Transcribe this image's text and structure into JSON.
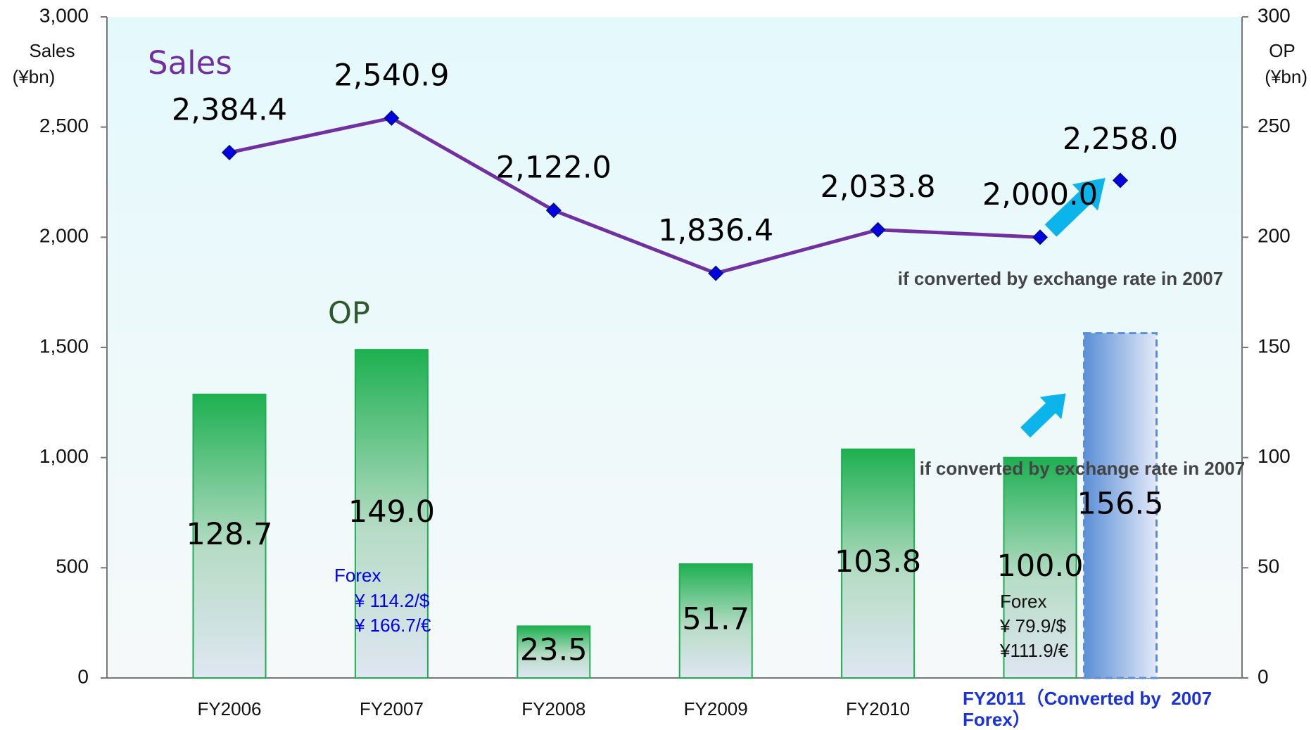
{
  "chart_data": {
    "type": "bar-line",
    "categories": [
      "FY2006",
      "FY2007",
      "FY2008",
      "FY2009",
      "FY2010",
      "FY2011（Converted by  2007 Forex）"
    ],
    "series": [
      {
        "name": "Sales",
        "color": "#7030a0",
        "marker_color": "#0000e0",
        "axis": "y",
        "type": "line",
        "values": [
          2384.4,
          2540.9,
          2122.0,
          1836.4,
          2033.8,
          2000.0
        ],
        "value_labels": [
          "2,384.4",
          "2,540.9",
          "2,122.0",
          "1,836.4",
          "2,033.8",
          "2,000.0"
        ]
      },
      {
        "name": "OP",
        "color": "#1db050",
        "name_color": "#2d5a2d",
        "axis": "y2",
        "type": "bar",
        "values": [
          128.7,
          149.0,
          23.5,
          51.7,
          103.8,
          100.0
        ],
        "value_labels": [
          "128.7",
          "149.0",
          "23.5",
          "51.7",
          "103.8",
          "100.0"
        ]
      }
    ],
    "converted": {
      "sales": 2258.0,
      "sales_label": "2,258.0",
      "op": 156.5,
      "op_label": "156.5",
      "color": "#5b8fd6"
    },
    "y_label": [
      "Sales",
      "(¥bn)"
    ],
    "y2_label": [
      "OP",
      "(¥bn)"
    ],
    "ylim": [
      0,
      3000
    ],
    "yticks": [
      0,
      500,
      {
        "value": 1000,
        "label": "1,000"
      },
      {
        "value": 1500,
        "label": "1,500"
      },
      {
        "value": 2000,
        "label": "2,000"
      },
      {
        "value": 2500,
        "label": "2,500"
      },
      {
        "value": 3000,
        "label": "3,000"
      }
    ],
    "y2lim": [
      0,
      300
    ],
    "y2ticks": [
      0,
      50,
      100,
      150,
      200,
      250,
      300
    ],
    "annotations": [
      {
        "text": "if converted by exchange rate in 2007"
      },
      {
        "text": "if converted by exchange rate in 2007"
      },
      {
        "lines": [
          "Forex",
          "¥ 114.2/$",
          "¥ 166.7/€"
        ],
        "color": "#0000ee"
      },
      {
        "lines": [
          "Forex",
          "¥ 79.9/$",
          "¥111.9/€"
        ],
        "color": "#111111"
      }
    ]
  }
}
